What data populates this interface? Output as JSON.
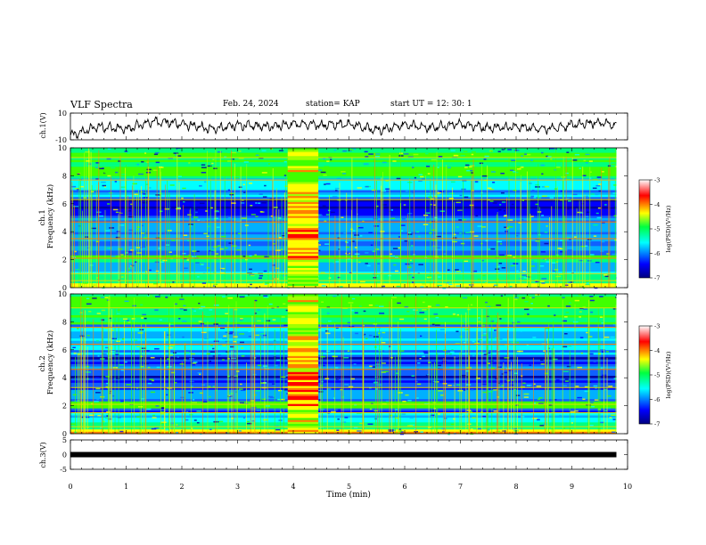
{
  "header": {
    "title": "VLF Spectra",
    "date": "Feb. 24, 2024",
    "station": "station= KAP",
    "start": "start UT =  12: 30: 1"
  },
  "chart_data": [
    {
      "type": "line",
      "panel": "ch1-voltage",
      "ylabel": "ch.1(V)",
      "ylim": [
        -10,
        10
      ],
      "yticks": [
        "10",
        "-10"
      ],
      "xlim": [
        0,
        10
      ],
      "series": [
        {
          "x": [
            0,
            0.5,
            1,
            1.5,
            2,
            2.5,
            3,
            3.5,
            4,
            4.5,
            5,
            5.5,
            6,
            6.5,
            7,
            7.5,
            8,
            8.5,
            9,
            9.5,
            9.8
          ],
          "values": [
            -7,
            0,
            -2,
            4,
            2,
            -2,
            1,
            0,
            2,
            1,
            2,
            -3,
            1,
            -1,
            2,
            -1,
            0,
            -2,
            1,
            3,
            1
          ]
        }
      ]
    },
    {
      "type": "heatmap",
      "panel": "ch1-spectrogram",
      "ylabel": "ch.1\nFrequency (kHz)",
      "ylim": [
        0,
        10
      ],
      "yticks": [
        "0",
        "2",
        "4",
        "6",
        "8",
        "10"
      ],
      "xlim": [
        0,
        10
      ],
      "data_extent_min": [
        0,
        9.8
      ],
      "colorbar": {
        "label": "log(PSD)(V²/Hz)",
        "range": [
          -7,
          -3
        ],
        "ticks": [
          "-3",
          "-4",
          "-5",
          "-6",
          "-7"
        ]
      },
      "burst_interval_min": [
        3.9,
        4.45
      ],
      "lines_khz": [
        0.5,
        1.0,
        2.1,
        3.5,
        4.7,
        6.3,
        7.7,
        9.3
      ]
    },
    {
      "type": "heatmap",
      "panel": "ch2-spectrogram",
      "ylabel": "ch.2\nFrequency (kHz)",
      "ylim": [
        0,
        10
      ],
      "yticks": [
        "0",
        "2",
        "4",
        "6",
        "8",
        "10"
      ],
      "xlim": [
        0,
        10
      ],
      "data_extent_min": [
        0,
        9.8
      ],
      "colorbar": {
        "label": "log(PSD)(V²/Hz)",
        "range": [
          -7,
          -3
        ],
        "ticks": [
          "-3",
          "-4",
          "-5",
          "-6",
          "-7"
        ]
      },
      "burst_interval_min": [
        3.9,
        4.45
      ],
      "lines_khz": [
        0.5,
        1.5,
        2.1,
        3.3,
        4.6,
        6.4,
        7.6,
        9.0
      ]
    },
    {
      "type": "line",
      "panel": "ch3-voltage",
      "ylabel": "ch.3(V)",
      "ylim": [
        -5,
        5
      ],
      "yticks": [
        "5",
        "0",
        "-5"
      ],
      "xlim": [
        0,
        10
      ],
      "series": [
        {
          "x": [
            0,
            9.8
          ],
          "values": [
            0,
            0
          ]
        }
      ]
    }
  ],
  "xaxis": {
    "label": "Time (min)",
    "ticks": [
      "0",
      "1",
      "2",
      "3",
      "4",
      "5",
      "6",
      "7",
      "8",
      "9",
      "10"
    ]
  }
}
